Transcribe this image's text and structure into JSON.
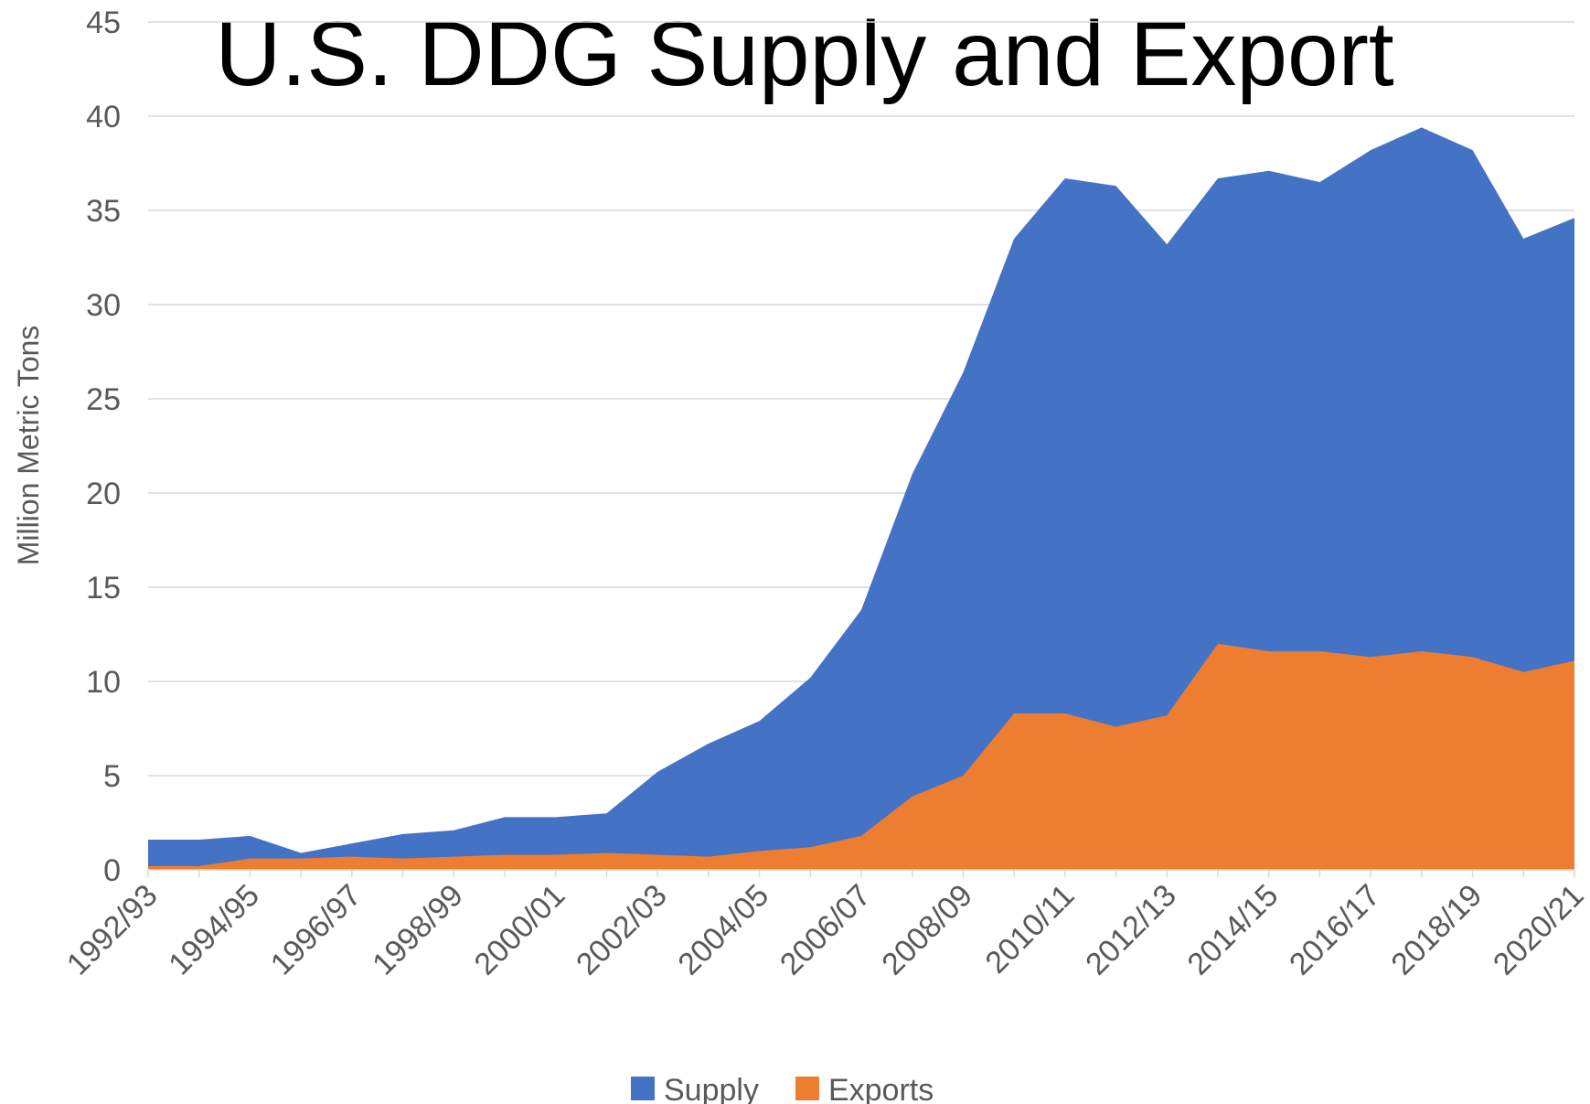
{
  "chart_data": {
    "type": "area",
    "title": "U.S. DDG Supply and Export",
    "y_label": "Million Metric Tons",
    "categories": [
      "1992/93",
      null,
      "1994/95",
      null,
      "1996/97",
      null,
      "1998/99",
      null,
      "2000/01",
      null,
      "2002/03",
      null,
      "2004/05",
      null,
      "2006/07",
      null,
      "2008/09",
      null,
      "2010/11",
      null,
      "2012/13",
      null,
      "2014/15",
      null,
      "2016/17",
      null,
      "2018/19",
      null,
      "2020/21"
    ],
    "series": [
      {
        "name": "Supply",
        "color": "#4472c4",
        "values": [
          1.6,
          1.6,
          1.8,
          0.9,
          1.4,
          1.9,
          2.1,
          2.8,
          2.8,
          3.0,
          5.2,
          6.7,
          7.9,
          10.2,
          13.8,
          21.0,
          26.4,
          33.5,
          36.7,
          36.3,
          33.2,
          36.7,
          37.1,
          36.5,
          38.2,
          39.4,
          38.2,
          33.5,
          34.6
        ]
      },
      {
        "name": "Exports",
        "color": "#ed7d31",
        "values": [
          0.2,
          0.2,
          0.6,
          0.6,
          0.7,
          0.6,
          0.7,
          0.8,
          0.8,
          0.9,
          0.8,
          0.7,
          1.0,
          1.2,
          1.8,
          3.9,
          5.0,
          8.3,
          8.3,
          7.6,
          8.2,
          12.0,
          11.6,
          11.6,
          11.3,
          11.6,
          11.3,
          10.5,
          11.1
        ]
      }
    ],
    "ylim": [
      0,
      45
    ],
    "yticks": [
      0,
      5,
      10,
      15,
      20,
      25,
      30,
      35,
      40,
      45
    ],
    "grid": true,
    "legend": "bottom"
  }
}
